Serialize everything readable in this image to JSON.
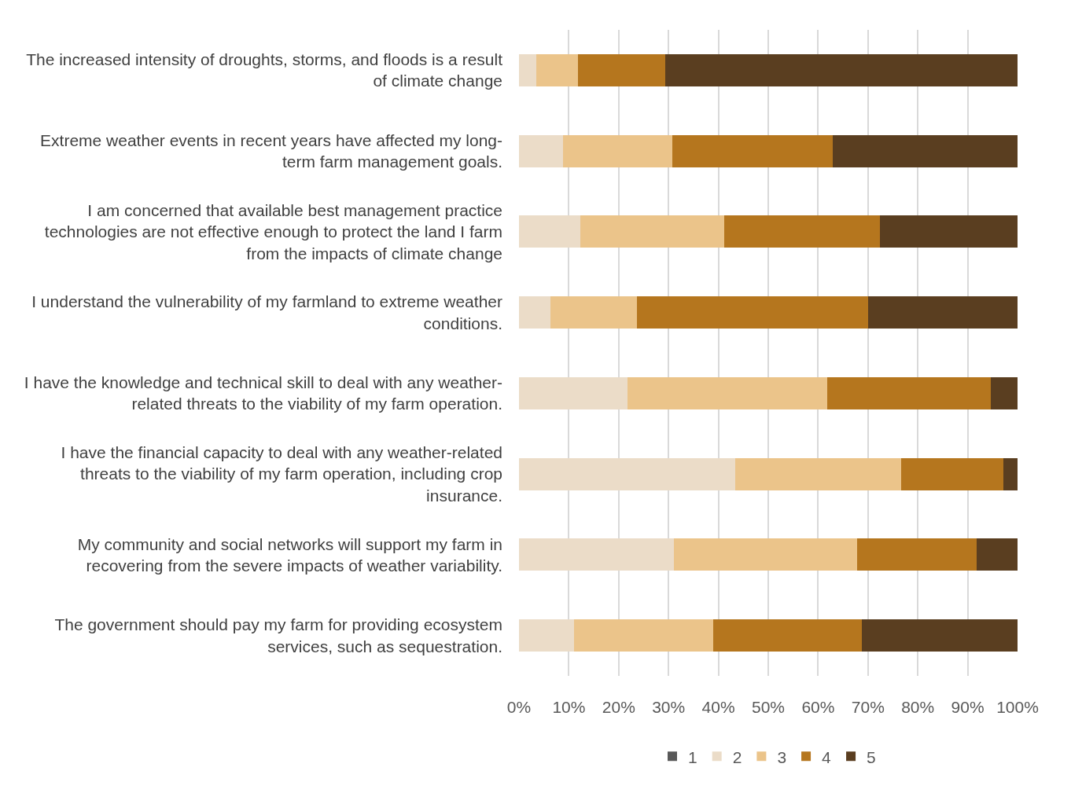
{
  "chart_data": {
    "type": "bar",
    "orientation": "horizontal",
    "stacked": true,
    "categories": [
      "The increased intensity of droughts, storms, and floods is a result of climate change",
      "Extreme weather events in recent years have affected my long-term farm management goals.",
      "I am concerned that available best management practice technologies are not effective enough to protect the land I farm from the impacts of climate change",
      "I understand the vulnerability of my farmland to extreme weather conditions.",
      "I have the knowledge and technical skill to deal with any weather-related threats to the viability of my farm operation.",
      "I have the financial capacity to deal with any weather-related threats to the viability of my farm operation, including crop insurance.",
      "My community and social networks will support my farm in recovering from the severe impacts of weather variability.",
      "The government should pay my farm for providing ecosystem services, such as sequestration."
    ],
    "series": [
      {
        "name": "1",
        "color": "#595959",
        "values": [
          0,
          0,
          0,
          0,
          0,
          0,
          0,
          0
        ]
      },
      {
        "name": "2",
        "color": "#ebdcc8",
        "values": [
          3.5,
          8.8,
          12.3,
          6.3,
          21.8,
          43.3,
          31.0,
          11.1
        ]
      },
      {
        "name": "3",
        "color": "#ebc48a",
        "values": [
          8.3,
          21.9,
          28.8,
          17.3,
          40.1,
          33.4,
          36.8,
          27.8
        ]
      },
      {
        "name": "4",
        "color": "#b5761e",
        "values": [
          17.6,
          32.2,
          31.3,
          46.5,
          32.8,
          20.5,
          24.0,
          29.9
        ]
      },
      {
        "name": "5",
        "color": "#5a3e20",
        "values": [
          70.6,
          37.1,
          27.6,
          29.9,
          5.3,
          2.8,
          8.2,
          31.2
        ]
      }
    ],
    "xlim": [
      0,
      100
    ],
    "xticks": [
      {
        "value": 0,
        "label": "0%"
      },
      {
        "value": 10,
        "label": "10%"
      },
      {
        "value": 20,
        "label": "20%"
      },
      {
        "value": 30,
        "label": "30%"
      },
      {
        "value": 40,
        "label": "40%"
      },
      {
        "value": 50,
        "label": "50%"
      },
      {
        "value": 60,
        "label": "60%"
      },
      {
        "value": 70,
        "label": "70%"
      },
      {
        "value": 80,
        "label": "80%"
      },
      {
        "value": 90,
        "label": "90%"
      },
      {
        "value": 100,
        "label": "100%"
      }
    ],
    "grid": "x",
    "legend": "bottom"
  }
}
